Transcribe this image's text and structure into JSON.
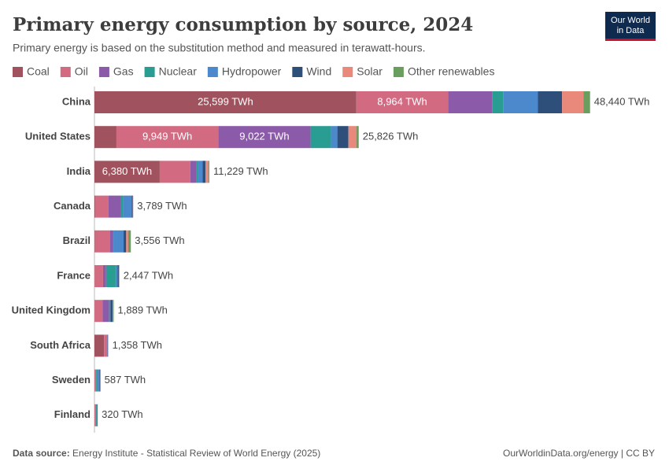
{
  "chart_data": {
    "type": "stacked-bar-horizontal",
    "title": "Primary energy consumption by source, 2024",
    "subtitle": "Primary energy is based on the substitution method and measured in terawatt-hours.",
    "logo": [
      "Our World",
      "in Data"
    ],
    "source_label": "Data source:",
    "source": "Energy Institute - Statistical Review of World Energy (2025)",
    "credit": "OurWorldinData.org/energy | CC BY",
    "categories": [
      "China",
      "United States",
      "India",
      "Canada",
      "Brazil",
      "France",
      "United Kingdom",
      "South Africa",
      "Sweden",
      "Finland"
    ],
    "xlim": [
      0,
      50000
    ],
    "series": [
      {
        "name": "Coal",
        "color": "#a0535e",
        "values": [
          25599,
          2150,
          6380,
          100,
          60,
          20,
          20,
          940,
          10,
          15
        ],
        "value_labels": [
          "25,599 TWh",
          null,
          "6,380 TWh",
          null,
          null,
          null,
          null,
          null,
          null,
          null
        ]
      },
      {
        "name": "Oil",
        "color": "#d26b82",
        "values": [
          8964,
          9949,
          2990,
          1280,
          1450,
          820,
          780,
          290,
          145,
          80
        ],
        "value_labels": [
          "8,964 TWh",
          "9,949 TWh",
          null,
          null,
          null,
          null,
          null,
          null,
          null,
          null
        ]
      },
      {
        "name": "Gas",
        "color": "#8b5aa9",
        "values": [
          4300,
          9022,
          600,
          1200,
          300,
          300,
          640,
          40,
          10,
          8
        ],
        "value_labels": [
          null,
          "9,022 TWh",
          null,
          null,
          null,
          null,
          null,
          null,
          null,
          null
        ]
      },
      {
        "name": "Nuclear",
        "color": "#2a9d92",
        "values": [
          1080,
          2000,
          150,
          220,
          40,
          930,
          110,
          25,
          150,
          90
        ]
      },
      {
        "name": "Hydropower",
        "color": "#4c88cc",
        "values": [
          3380,
          620,
          450,
          850,
          1000,
          190,
          12,
          3,
          170,
          30
        ]
      },
      {
        "name": "Wind",
        "color": "#2f4f7b",
        "values": [
          2380,
          1080,
          280,
          100,
          250,
          120,
          220,
          30,
          90,
          60
        ]
      },
      {
        "name": "Solar",
        "color": "#e8897c",
        "values": [
          2080,
          770,
          280,
          20,
          200,
          60,
          35,
          25,
          8,
          3
        ]
      },
      {
        "name": "Other renewables",
        "color": "#6a9e5e",
        "values": [
          657,
          235,
          99,
          19,
          256,
          7,
          72,
          5,
          4,
          34
        ]
      }
    ],
    "totals": [
      48440,
      25826,
      11229,
      3789,
      3556,
      2447,
      1889,
      1358,
      587,
      320
    ],
    "total_labels": [
      "48,440 TWh",
      "25,826 TWh",
      "11,229 TWh",
      "3,789 TWh",
      "3,556 TWh",
      "2,447 TWh",
      "1,889 TWh",
      "1,358 TWh",
      "587 TWh",
      "320 TWh"
    ]
  }
}
